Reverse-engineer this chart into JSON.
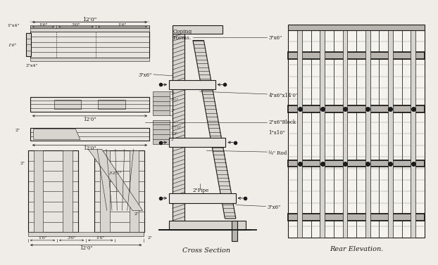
{
  "bg_color": "#f0ede8",
  "line_color": "#1a1a1a",
  "fill_light": "#e8e5e0",
  "fill_mid": "#d8d5d0",
  "fill_dark": "#b8b5b0",
  "fill_hatch": "#c8c5c0",
  "title": "Cross Section",
  "title2": "Rear Elevation.",
  "labels": {
    "dim_12_0_top": "12'0\"",
    "dim_1_6_a": "1'6\"",
    "dim_3_0": "3'0\"",
    "dim_1_6_b": "1'6\"",
    "dim_1_6_vert": "1'6\"",
    "dim_12_0_mid1": "12'0\"",
    "dim_12_0_mid2": "12'0\"",
    "dim_12_0_bot": "12'0\"",
    "dim_1_6_bot_a": "1'6\"",
    "dim_3_0_bot": "3'0\"",
    "dim_1_6_bot_b": "1'6\"",
    "dim_2_bot": "2\"",
    "dim_2_left": "2\"",
    "dim_3_2": "3'2½\"",
    "label_1x4": "1\"x4\"",
    "label_2x4": "2\"x4\"",
    "label_coping": "Coping\nForms.",
    "label_3x6_top": "3\"x6\"",
    "label_3x6_mid": "3\"x6\"",
    "label_3x6_bot": "3\"x6\"",
    "label_4x6": "4\"x6\"x14'0\"",
    "label_2x6block": "2\"x6\"Block",
    "label_1x10": "1\"x10\"",
    "label_rod": "¾\" Rod",
    "label_pipe": "2\"Pipe",
    "dim_sizes": [
      "3\"",
      "3½\"",
      "2\""
    ]
  }
}
